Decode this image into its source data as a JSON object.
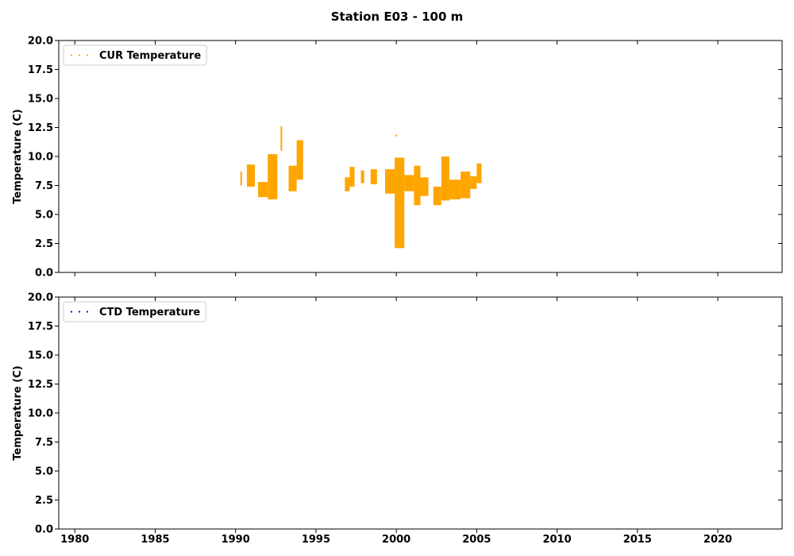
{
  "figure": {
    "title": "Station E03 - 100 m"
  },
  "chart_data": [
    {
      "type": "scatter",
      "title": "",
      "xlabel": "",
      "ylabel": "Temperature (C)",
      "xlim": [
        1979,
        2024
      ],
      "ylim": [
        0,
        20
      ],
      "xticks": [
        1980,
        1985,
        1990,
        1995,
        2000,
        2005,
        2010,
        2015,
        2020
      ],
      "xtick_labels_visible": false,
      "yticks": [
        0.0,
        2.5,
        5.0,
        7.5,
        10.0,
        12.5,
        15.0,
        17.5,
        20.0
      ],
      "ytick_labels": [
        "0.0",
        "2.5",
        "5.0",
        "7.5",
        "10.0",
        "12.5",
        "15.0",
        "17.5",
        "20.0"
      ],
      "legend_position": "top-left",
      "series": [
        {
          "name": "CUR Temperature",
          "color": "#ffa500",
          "segments": [
            {
              "x": [
                1990.3,
                1990.4
              ],
              "y": [
                7.5,
                8.7
              ]
            },
            {
              "x": [
                1990.7,
                1991.2
              ],
              "y": [
                7.4,
                9.3
              ]
            },
            {
              "x": [
                1991.4,
                1992.0
              ],
              "y": [
                6.5,
                7.8
              ]
            },
            {
              "x": [
                1992.0,
                1992.6
              ],
              "y": [
                6.3,
                10.2
              ]
            },
            {
              "x": [
                1992.8,
                1992.9
              ],
              "y": [
                10.5,
                12.6
              ]
            },
            {
              "x": [
                1993.3,
                1993.8
              ],
              "y": [
                7.0,
                9.2
              ]
            },
            {
              "x": [
                1993.8,
                1994.2
              ],
              "y": [
                8.0,
                11.4
              ]
            },
            {
              "x": [
                1996.8,
                1997.1
              ],
              "y": [
                7.0,
                8.2
              ]
            },
            {
              "x": [
                1997.1,
                1997.4
              ],
              "y": [
                7.4,
                9.1
              ]
            },
            {
              "x": [
                1997.8,
                1998.0
              ],
              "y": [
                7.7,
                8.8
              ]
            },
            {
              "x": [
                1998.4,
                1998.8
              ],
              "y": [
                7.6,
                8.9
              ]
            },
            {
              "x": [
                1999.3,
                1999.9
              ],
              "y": [
                6.8,
                8.9
              ]
            },
            {
              "x": [
                1999.9,
                2000.5
              ],
              "y": [
                2.1,
                9.9
              ]
            },
            {
              "x": [
                2000.5,
                2001.1
              ],
              "y": [
                7.0,
                8.4
              ]
            },
            {
              "x": [
                2001.1,
                2001.5
              ],
              "y": [
                5.8,
                9.2
              ]
            },
            {
              "x": [
                2001.5,
                2002.0
              ],
              "y": [
                6.6,
                8.2
              ]
            },
            {
              "x": [
                2002.3,
                2002.8
              ],
              "y": [
                5.8,
                7.4
              ]
            },
            {
              "x": [
                2002.8,
                2003.3
              ],
              "y": [
                6.2,
                10.0
              ]
            },
            {
              "x": [
                2003.3,
                2004.0
              ],
              "y": [
                6.3,
                8.0
              ]
            },
            {
              "x": [
                2004.0,
                2004.6
              ],
              "y": [
                6.4,
                8.7
              ]
            },
            {
              "x": [
                2004.6,
                2005.0
              ],
              "y": [
                7.2,
                8.3
              ]
            },
            {
              "x": [
                2005.0,
                2005.3
              ],
              "y": [
                7.7,
                9.4
              ]
            }
          ],
          "points": [
            {
              "x": 2000.0,
              "y": 11.8
            }
          ]
        }
      ]
    },
    {
      "type": "scatter",
      "title": "",
      "xlabel": "",
      "ylabel": "Temperature (C)",
      "xlim": [
        1979,
        2024
      ],
      "ylim": [
        0,
        20
      ],
      "xticks": [
        1980,
        1985,
        1990,
        1995,
        2000,
        2005,
        2010,
        2015,
        2020
      ],
      "xtick_labels": [
        "1980",
        "1985",
        "1990",
        "1995",
        "2000",
        "2005",
        "2010",
        "2015",
        "2020"
      ],
      "yticks": [
        0.0,
        2.5,
        5.0,
        7.5,
        10.0,
        12.5,
        15.0,
        17.5,
        20.0
      ],
      "ytick_labels": [
        "0.0",
        "2.5",
        "5.0",
        "7.5",
        "10.0",
        "12.5",
        "15.0",
        "17.5",
        "20.0"
      ],
      "legend_position": "top-left",
      "series": [
        {
          "name": "CTD Temperature",
          "color": "#0000ff",
          "segments": [],
          "points": []
        }
      ]
    }
  ]
}
